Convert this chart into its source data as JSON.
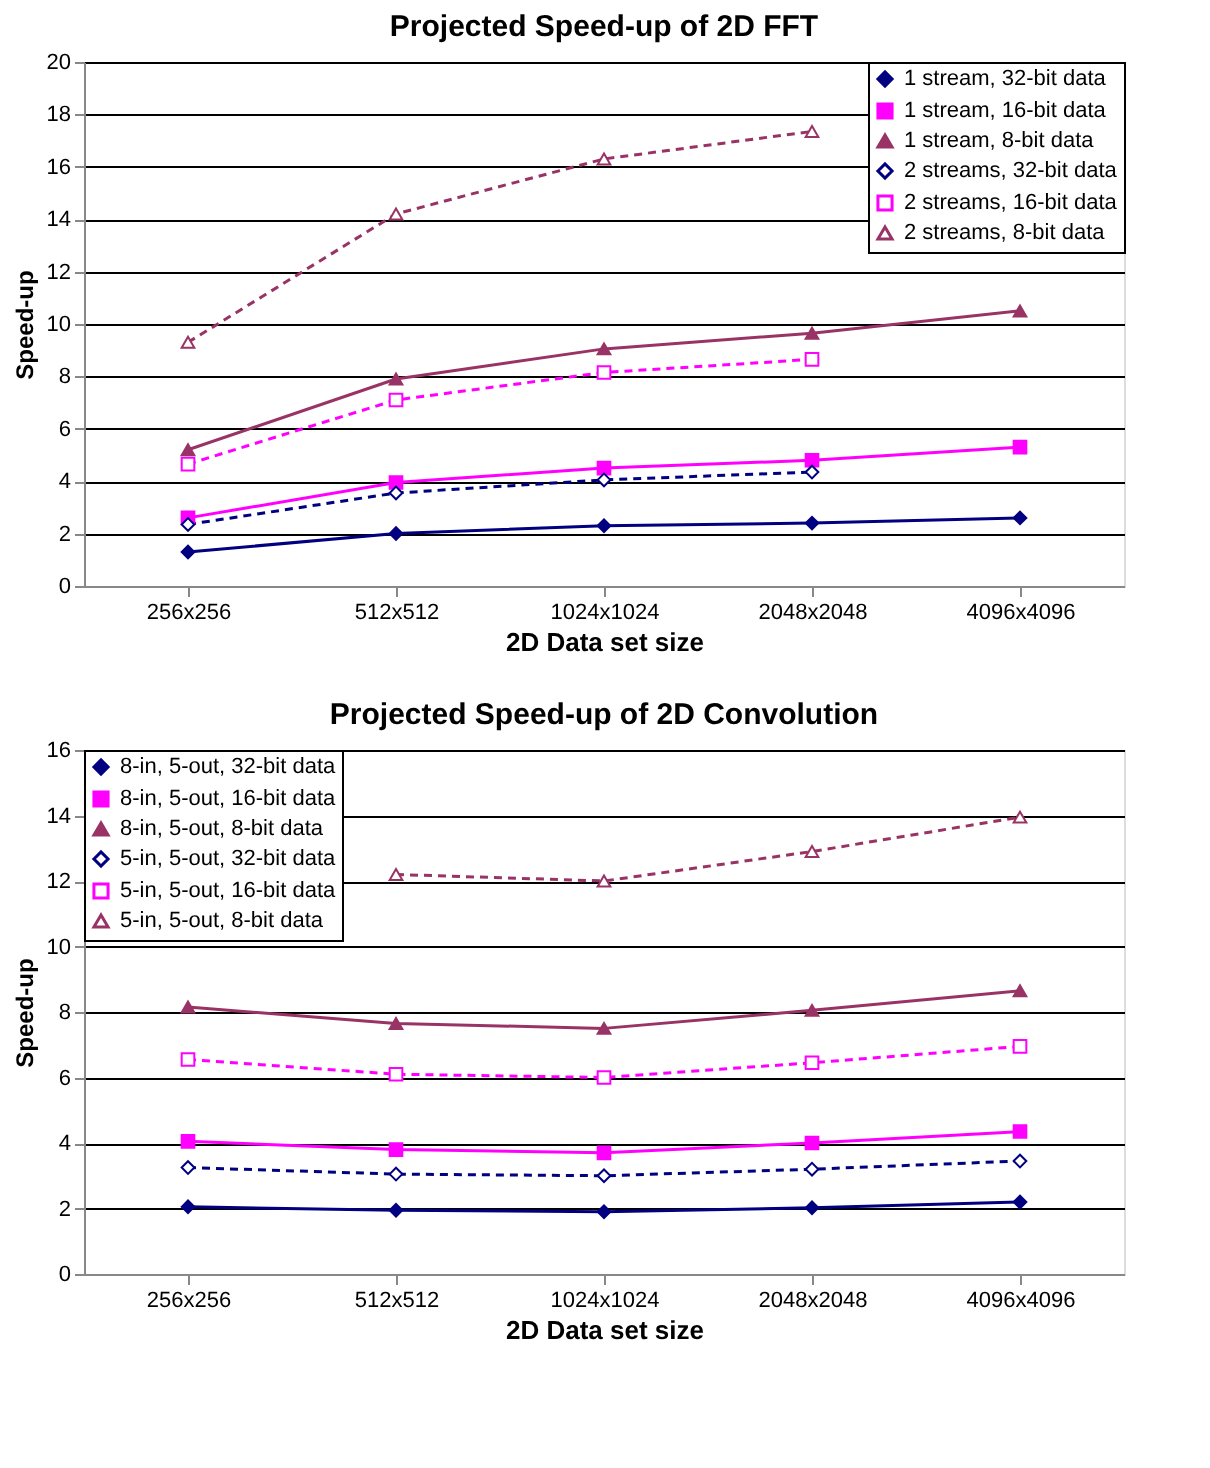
{
  "chart_data": [
    {
      "type": "line",
      "title": "Projected Speed-up of 2D FFT",
      "xlabel": "2D Data set size",
      "ylabel": "Speed-up",
      "categories": [
        "256x256",
        "512x512",
        "1024x1024",
        "2048x2048",
        "4096x4096"
      ],
      "ylim": [
        0,
        20
      ],
      "yticks": [
        0,
        2,
        4,
        6,
        8,
        10,
        12,
        14,
        16,
        18,
        20
      ],
      "grid": "y",
      "legend": "top right",
      "series": [
        {
          "name": "1 stream, 32-bit data",
          "color": "#000080",
          "marker": "diamond",
          "line_style": "solid",
          "values": [
            1.3,
            2.0,
            2.3,
            2.4,
            2.6
          ]
        },
        {
          "name": "1 stream, 16-bit data",
          "color": "#ff00ff",
          "marker": "square",
          "line_style": "solid",
          "values": [
            2.6,
            3.95,
            4.5,
            4.8,
            5.3
          ]
        },
        {
          "name": "1 stream, 8-bit data",
          "color": "#993366",
          "marker": "triangle",
          "line_style": "solid",
          "values": [
            5.2,
            7.9,
            9.05,
            9.65,
            10.5
          ]
        },
        {
          "name": "2 streams, 32-bit data",
          "color": "#000080",
          "marker": "diamond",
          "line_style": "dashed",
          "values": [
            2.35,
            3.55,
            4.05,
            4.35,
            null
          ]
        },
        {
          "name": "2 streams, 16-bit data",
          "color": "#ff00ff",
          "marker": "square",
          "line_style": "dashed",
          "values": [
            4.65,
            7.1,
            8.15,
            8.65,
            null
          ]
        },
        {
          "name": "2 streams, 8-bit data",
          "color": "#993366",
          "marker": "triangle",
          "line_style": "dashed",
          "values": [
            9.3,
            14.2,
            16.3,
            17.35,
            null
          ]
        }
      ]
    },
    {
      "type": "line",
      "title": "Projected Speed-up of 2D Convolution",
      "xlabel": "2D Data set size",
      "ylabel": "Speed-up",
      "categories": [
        "256x256",
        "512x512",
        "1024x1024",
        "2048x2048",
        "4096x4096"
      ],
      "ylim": [
        0,
        16
      ],
      "yticks": [
        0,
        2,
        4,
        6,
        8,
        10,
        12,
        14,
        16
      ],
      "grid": "y",
      "legend": "top left",
      "series": [
        {
          "name": "8-in, 5-out, 32-bit data",
          "color": "#000080",
          "marker": "diamond",
          "line_style": "solid",
          "values": [
            2.05,
            1.95,
            1.9,
            2.02,
            2.2
          ]
        },
        {
          "name": "8-in, 5-out, 16-bit data",
          "color": "#ff00ff",
          "marker": "square",
          "line_style": "solid",
          "values": [
            4.05,
            3.8,
            3.7,
            4.0,
            4.35
          ]
        },
        {
          "name": "8-in, 5-out, 8-bit data",
          "color": "#993366",
          "marker": "triangle",
          "line_style": "solid",
          "values": [
            8.15,
            7.65,
            7.5,
            8.05,
            8.65
          ]
        },
        {
          "name": "5-in, 5-out, 32-bit data",
          "color": "#000080",
          "marker": "diamond",
          "line_style": "dashed",
          "values": [
            3.25,
            3.05,
            3.0,
            3.2,
            3.45
          ]
        },
        {
          "name": "5-in, 5-out, 16-bit data",
          "color": "#ff00ff",
          "marker": "square",
          "line_style": "dashed",
          "values": [
            6.55,
            6.1,
            6.0,
            6.45,
            6.95
          ]
        },
        {
          "name": "5-in, 5-out, 8-bit data",
          "color": "#993366",
          "marker": "triangle",
          "line_style": "dashed",
          "values": [
            null,
            12.2,
            12.0,
            12.9,
            13.95
          ]
        }
      ]
    }
  ]
}
